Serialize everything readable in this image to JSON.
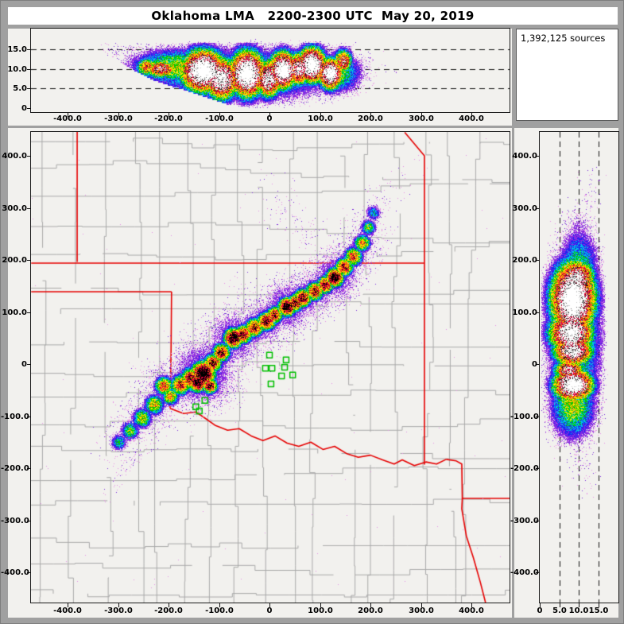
{
  "title": "Oklahoma LMA   2200-2300 UTC  May 20, 2019",
  "sources_box": {
    "label": "1,392,125 sources"
  },
  "palette": {
    "panel_background": "#f2f1ee",
    "frame": "#a0a0a0",
    "county_line": "#a9a9a9",
    "state_line": "#e60000",
    "station_color": "#00bf00",
    "dash_line": "#111111",
    "speckle_colors": [
      "#e68fe6",
      "#7a2ad9"
    ],
    "main_bands": [
      [
        0.215,
        "#8a2be2"
      ],
      [
        0.285,
        "#2222f0"
      ],
      [
        0.37,
        "#00c0e8"
      ],
      [
        0.45,
        "#00cc00"
      ],
      [
        0.58,
        "#ffe800"
      ],
      [
        0.68,
        "#ff9800"
      ],
      [
        0.78,
        "#f2003c"
      ],
      [
        0.9,
        "#8b0020"
      ],
      [
        0.97,
        "#000000"
      ]
    ],
    "side_bands": [
      [
        0.2,
        "#8a2be2"
      ],
      [
        0.27,
        "#2222f0"
      ],
      [
        0.35,
        "#00c0e8"
      ],
      [
        0.43,
        "#00cc00"
      ],
      [
        0.54,
        "#ffe800"
      ],
      [
        0.63,
        "#ff9800"
      ],
      [
        0.72,
        "#f2003c"
      ],
      [
        0.82,
        "#8b0020"
      ],
      [
        0.86,
        "#151515"
      ],
      [
        0.9,
        "#6e6e6e"
      ],
      [
        0.94,
        "#c8c8c8"
      ],
      [
        0.99,
        "#ffffff"
      ]
    ]
  },
  "chart_data": [
    {
      "id": "plan-view",
      "type": "heatmap",
      "description": "Plan view lightning source density, km east-west vs km north-south",
      "x_range": [
        -472,
        476
      ],
      "y_range": [
        -455,
        446
      ],
      "x_ticks": {
        "values": [
          -400,
          -300,
          -200,
          -100,
          0,
          100,
          200,
          300,
          400
        ],
        "labels": [
          "-400.0",
          "-300.0",
          "-200.0",
          "-100.0",
          "0",
          "100.0",
          "200.0",
          "300.0",
          "400.0"
        ]
      },
      "y_ticks": {
        "values": [
          400,
          300,
          200,
          100,
          0,
          -100,
          -200,
          -300,
          -400
        ],
        "labels": [
          "400.0",
          "300.0",
          "200.0",
          "100.0",
          "0",
          "-100.0",
          "-200.0",
          "-300.0",
          "-400.0"
        ]
      },
      "grid": false,
      "legend": false,
      "cells": [
        [
          -298,
          -150,
          12,
          0.45
        ],
        [
          -276,
          -128,
          13,
          0.55
        ],
        [
          -252,
          -104,
          14,
          0.62
        ],
        [
          -228,
          -78,
          14,
          0.68
        ],
        [
          -209,
          -42,
          13,
          0.82
        ],
        [
          -196,
          -62,
          12,
          0.72
        ],
        [
          -176,
          -40,
          14,
          0.86
        ],
        [
          -156,
          -28,
          15,
          0.92
        ],
        [
          -131,
          -18,
          17,
          1.18
        ],
        [
          -142,
          -36,
          13,
          1.06
        ],
        [
          -118,
          -42,
          11,
          0.95
        ],
        [
          -112,
          2,
          13,
          0.92
        ],
        [
          -95,
          22,
          13,
          0.92
        ],
        [
          -71,
          50,
          14,
          1.1
        ],
        [
          -52,
          57,
          13,
          0.95
        ],
        [
          -30,
          70,
          13,
          0.94
        ],
        [
          -6,
          82,
          13,
          0.98
        ],
        [
          10,
          94,
          12,
          0.92
        ],
        [
          35,
          110,
          13,
          1.12
        ],
        [
          52,
          118,
          12,
          0.94
        ],
        [
          66,
          127,
          13,
          0.96
        ],
        [
          90,
          140,
          13,
          0.92
        ],
        [
          110,
          152,
          12,
          0.94
        ],
        [
          129,
          166,
          13,
          1.1
        ],
        [
          148,
          186,
          13,
          0.88
        ],
        [
          166,
          206,
          13,
          0.82
        ],
        [
          184,
          232,
          12,
          0.72
        ],
        [
          196,
          262,
          11,
          0.56
        ],
        [
          206,
          290,
          11,
          0.42
        ]
      ],
      "speckle_cells": [
        [
          -265,
          -175,
          20,
          0.13
        ],
        [
          -288,
          -205,
          18,
          0.11
        ],
        [
          -306,
          -236,
          16,
          0.1
        ],
        [
          -322,
          -262,
          14,
          0.08
        ],
        [
          -255,
          -140,
          26,
          0.12
        ],
        [
          30,
          300,
          42,
          0.085
        ],
        [
          75,
          255,
          34,
          0.09
        ],
        [
          0,
          345,
          36,
          0.06
        ],
        [
          110,
          215,
          32,
          0.1
        ],
        [
          228,
          318,
          36,
          0.1
        ],
        [
          266,
          352,
          30,
          0.07
        ],
        [
          300,
          385,
          26,
          0.05
        ],
        [
          -40,
          130,
          40,
          0.09
        ],
        [
          -150,
          40,
          40,
          0.09
        ],
        [
          -230,
          -20,
          36,
          0.08
        ]
      ],
      "base_speckle_prob": 0.00038
    },
    {
      "id": "ew-altitude",
      "type": "heatmap",
      "description": "Altitude (km) vs east-west distance (km)",
      "x_range": [
        -472,
        476
      ],
      "alt_range": [
        0,
        20.3
      ],
      "x_ticks": {
        "values": [
          -400,
          -300,
          -200,
          -100,
          0,
          100,
          200,
          300,
          400
        ],
        "labels": [
          "-400.0",
          "-300.0",
          "-200.0",
          "-100.0",
          "0",
          "100.0",
          "200.0",
          "300.0",
          "400.0"
        ]
      },
      "alt_ticks": {
        "values": [
          0,
          5,
          10,
          15
        ],
        "labels": [
          "0",
          "5.0",
          "10.0",
          "15.0"
        ]
      },
      "dashed_levels": [
        5,
        10,
        15
      ],
      "cells": [
        [
          -215,
          10,
          24,
          1.7,
          0.88
        ],
        [
          -243,
          10.5,
          16,
          1.8,
          0.72
        ],
        [
          -131,
          9.5,
          32,
          3.8,
          1.3
        ],
        [
          -95,
          7.5,
          24,
          3.8,
          1.15
        ],
        [
          -44,
          8.8,
          25,
          4.2,
          1.3
        ],
        [
          -2,
          7.5,
          18,
          3.4,
          1.08
        ],
        [
          27,
          9.7,
          20,
          3.4,
          1.26
        ],
        [
          58,
          10,
          18,
          3.0,
          1.02
        ],
        [
          84,
          11,
          20,
          3.2,
          1.28
        ],
        [
          121,
          8.8,
          17,
          2.8,
          1.24
        ],
        [
          146,
          12,
          13,
          2.2,
          0.86
        ],
        [
          -60,
          8.5,
          140,
          4.8,
          0.52
        ],
        [
          -180,
          10.5,
          70,
          3.4,
          0.56
        ],
        [
          130,
          9,
          38,
          3.8,
          0.52
        ],
        [
          -255,
          13.5,
          55,
          2.6,
          0.17
        ],
        [
          -315,
          15,
          45,
          2.4,
          0.11
        ],
        [
          -370,
          16,
          40,
          2.2,
          0.06
        ],
        [
          172,
          11,
          24,
          2.8,
          0.18
        ],
        [
          200,
          12,
          22,
          2.6,
          0.09
        ]
      ],
      "base_speckle_prob": 0
    },
    {
      "id": "ns-altitude",
      "type": "heatmap",
      "description": "North-south distance (km) vs altitude (km)",
      "alt_range": [
        0,
        20.1
      ],
      "y_range": [
        -455,
        446
      ],
      "alt_ticks": {
        "values": [
          0,
          5,
          10,
          15
        ],
        "labels": [
          "0",
          "5.0",
          "10.0",
          "15.0"
        ]
      },
      "y_ticks": {
        "values": [
          400,
          300,
          200,
          100,
          0,
          -100,
          -200,
          -300,
          -400
        ],
        "labels": [
          "400.0",
          "300.0",
          "200.0",
          "100.0",
          "0",
          "-100.0",
          "-200.0",
          "-300.0",
          "-400.0"
        ]
      },
      "dashed_levels": [
        5,
        10,
        15
      ],
      "cells": [
        [
          125,
          8.5,
          50,
          4.0,
          1.3
        ],
        [
          165,
          9.5,
          25,
          3.2,
          1.05
        ],
        [
          60,
          8.0,
          28,
          4.0,
          1.18
        ],
        [
          25,
          8.5,
          20,
          3.6,
          1.12
        ],
        [
          -40,
          8.5,
          22,
          3.6,
          1.26
        ],
        [
          -12,
          7.5,
          14,
          2.8,
          0.96
        ],
        [
          60,
          9,
          115,
          5.0,
          0.52
        ],
        [
          -75,
          8.5,
          50,
          4.2,
          0.56
        ],
        [
          185,
          10,
          55,
          3.8,
          0.45
        ],
        [
          240,
          10,
          48,
          3.4,
          0.22
        ],
        [
          295,
          12,
          42,
          3.2,
          0.11
        ],
        [
          355,
          13,
          38,
          3.0,
          0.07
        ],
        [
          -140,
          9,
          34,
          3.8,
          0.17
        ],
        [
          -200,
          11,
          32,
          3.4,
          0.1
        ],
        [
          -245,
          12,
          24,
          3.0,
          0.06
        ]
      ],
      "base_speckle_prob": 0
    }
  ],
  "map": {
    "county_cell_km": 52,
    "state_borders_km": [
      [
        [
          -381,
          447
        ],
        [
          -381,
          196
        ]
      ],
      [
        [
          -472,
          194
        ],
        [
          307,
          194
        ]
      ],
      [
        [
          -472,
          139
        ],
        [
          -194,
          139
        ]
      ],
      [
        [
          -194,
          139
        ],
        [
          -195,
          20
        ],
        [
          -197,
          -85
        ]
      ],
      [
        [
          -197,
          -85
        ],
        [
          -170,
          -95
        ],
        [
          -146,
          -92
        ],
        [
          -126,
          -105
        ],
        [
          -107,
          -118
        ],
        [
          -83,
          -127
        ],
        [
          -60,
          -124
        ],
        [
          -36,
          -138
        ],
        [
          -13,
          -147
        ],
        [
          11,
          -138
        ],
        [
          35,
          -152
        ],
        [
          58,
          -158
        ],
        [
          82,
          -150
        ],
        [
          106,
          -164
        ],
        [
          129,
          -158
        ],
        [
          153,
          -172
        ],
        [
          176,
          -179
        ],
        [
          200,
          -175
        ],
        [
          224,
          -184
        ],
        [
          247,
          -192
        ],
        [
          263,
          -184
        ],
        [
          287,
          -195
        ],
        [
          310,
          -188
        ],
        [
          331,
          -192
        ],
        [
          350,
          -183
        ]
      ],
      [
        [
          268,
          445
        ],
        [
          307,
          400
        ],
        [
          307,
          -193
        ]
      ],
      [
        [
          350,
          -183
        ],
        [
          370,
          -186
        ],
        [
          381,
          -192
        ],
        [
          382,
          -258
        ],
        [
          381,
          -278
        ],
        [
          390,
          -330
        ],
        [
          404,
          -372
        ],
        [
          418,
          -420
        ],
        [
          428,
          -458
        ]
      ],
      [
        [
          381,
          -258
        ],
        [
          476,
          -258
        ]
      ]
    ],
    "stations_km": [
      [
        0,
        17
      ],
      [
        33,
        8
      ],
      [
        -8,
        -8
      ],
      [
        5,
        -8
      ],
      [
        30,
        -6
      ],
      [
        46,
        -21
      ],
      [
        24,
        -23
      ],
      [
        3,
        -38
      ],
      [
        -146,
        -82
      ],
      [
        -139,
        -90
      ],
      [
        -128,
        -70
      ]
    ]
  }
}
